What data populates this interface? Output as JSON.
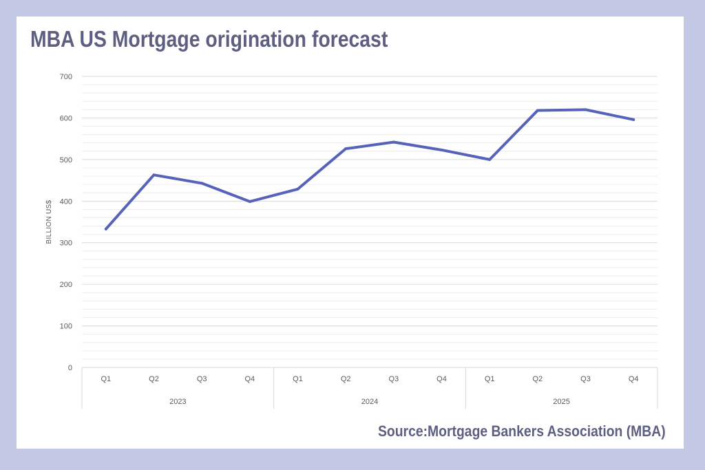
{
  "title": "MBA US Mortgage origination forecast",
  "source": "Source:Mortgage Bankers Association (MBA)",
  "colors": {
    "background": "#c3c8e4",
    "title": "#5c5f82",
    "line": "#5563b8",
    "grid": "#d9d9d9"
  },
  "chart_data": {
    "type": "line",
    "title": "MBA US Mortgage origination forecast",
    "ylabel": "BILLION US$",
    "xlabel": "",
    "ylim": [
      0,
      700
    ],
    "yticks": [
      0,
      100,
      200,
      300,
      400,
      500,
      600,
      700
    ],
    "grid": true,
    "legend": "none",
    "x": [
      "Q1",
      "Q2",
      "Q3",
      "Q4",
      "Q1",
      "Q2",
      "Q3",
      "Q4",
      "Q1",
      "Q2",
      "Q3",
      "Q4"
    ],
    "groups": [
      {
        "label": "2023",
        "size": 4
      },
      {
        "label": "2024",
        "size": 4
      },
      {
        "label": "2025",
        "size": 4
      }
    ],
    "series": [
      {
        "values": [
          333,
          463,
          443,
          399,
          429,
          526,
          542,
          523,
          500,
          618,
          620,
          596
        ]
      }
    ]
  }
}
